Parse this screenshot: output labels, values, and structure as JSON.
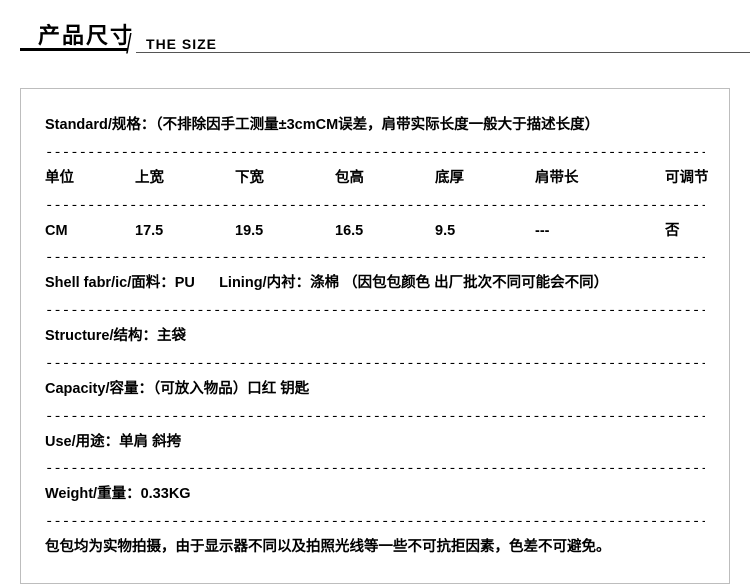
{
  "header": {
    "title_cn": "产品尺寸",
    "title_en": "THE SIZE"
  },
  "standard": {
    "label": "Standard/规格：",
    "text": "（不排除因手工测量±3cmCM误差，肩带实际长度一般大于描述长度）"
  },
  "table": {
    "headers": [
      "单位",
      "上宽",
      "下宽",
      "包高",
      "底厚",
      "肩带长",
      "可调节"
    ],
    "row": [
      "CM",
      "17.5",
      "19.5",
      "16.5",
      "9.5",
      "---",
      "否"
    ]
  },
  "fabric": {
    "shell_label": "Shell fabr/ic/面料：",
    "shell_value": "PU",
    "lining_label": "Lining/内衬：",
    "lining_value": "涤棉",
    "lining_note": "（因包包颜色 出厂批次不同可能会不同）"
  },
  "structure": {
    "label": "Structure/结构：",
    "value": "主袋"
  },
  "capacity": {
    "label": "Capacity/容量：",
    "value": "（可放入物品）口红 钥匙"
  },
  "use": {
    "label": "Use/用途：",
    "value": "单肩 斜挎"
  },
  "weight": {
    "label": "Weight/重量：",
    "value": "0.33KG"
  },
  "note": "包包均为实物拍摄，由于显示器不同以及拍照光线等一些不可抗拒因素，色差不可避免。",
  "dash": "-------------------------------------------------------------------------------------------------------------"
}
